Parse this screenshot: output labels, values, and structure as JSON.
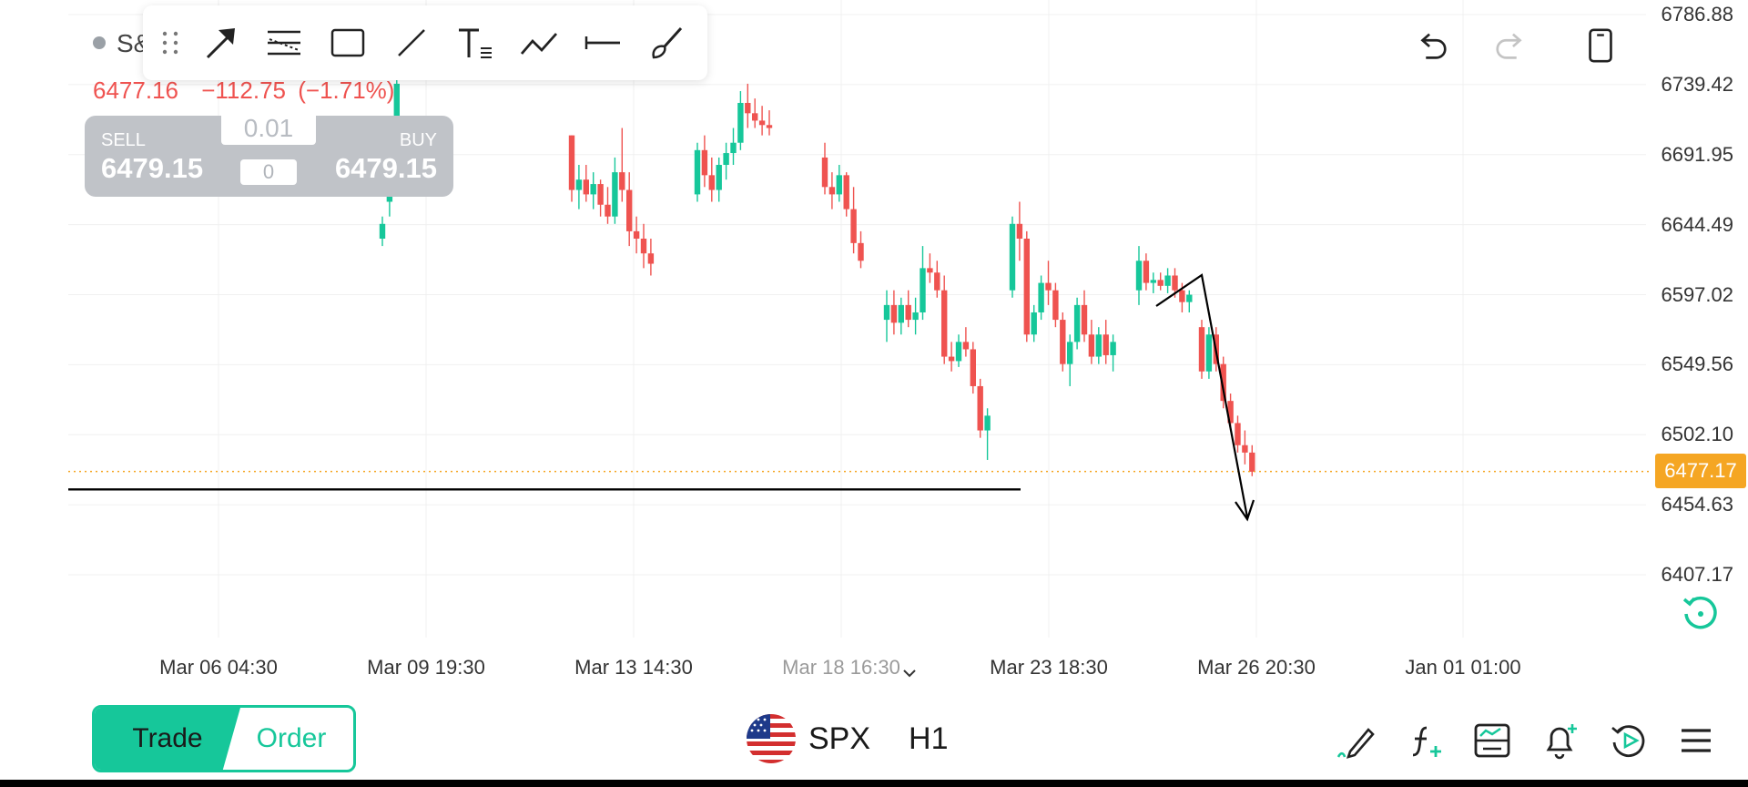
{
  "symbol": {
    "name_fragment": "S&",
    "last": "6477.16",
    "change": "−112.75",
    "change_pct": "(−1.71%)"
  },
  "trade_panel": {
    "sell_label": "SELL",
    "sell_price": "6479.15",
    "buy_label": "BUY",
    "buy_price": "6479.15",
    "lot_size": "0.01",
    "quantity": "0"
  },
  "toolbar": {
    "tools": [
      "drag-handle",
      "arrow-tool",
      "fib-retracement-tool",
      "rectangle-tool",
      "trend-line-tool",
      "text-tool",
      "path-tool",
      "horizontal-ray-tool",
      "brush-tool"
    ],
    "undo_label": "undo",
    "redo_label": "redo"
  },
  "price_axis": {
    "labels": [
      "6786.88",
      "6739.42",
      "6691.95",
      "6644.49",
      "6597.02",
      "6549.56",
      "6502.10",
      "6454.63",
      "6407.17"
    ],
    "current_price": "6477.17"
  },
  "time_axis": {
    "labels": [
      "Mar 06 04:30",
      "Mar 09 19:30",
      "Mar 13 14:30",
      "Mar 18 16:30",
      "Mar 23 18:30",
      "Mar 26 20:30",
      "Jan 01 01:00"
    ]
  },
  "bottom_bar": {
    "trade_label": "Trade",
    "order_label": "Order",
    "symbol": "SPX",
    "timeframe": "H1"
  },
  "colors": {
    "up": "#16c79a",
    "down": "#ef5350",
    "price_line": "#f5a623",
    "accent": "#16c79a"
  },
  "chart_data": {
    "type": "candlestick",
    "title": "",
    "ylim": [
      6407.17,
      6786.88
    ],
    "series": [
      {
        "type": "ohlc",
        "values": [
          [
            6635,
            6650,
            6630,
            6645
          ],
          [
            6660,
            6700,
            6650,
            6690
          ],
          [
            6700,
            6745,
            6690,
            6740
          ],
          [
            6705,
            6705,
            6660,
            6668
          ],
          [
            6668,
            6685,
            6655,
            6675
          ],
          [
            6675,
            6685,
            6660,
            6665
          ],
          [
            6665,
            6680,
            6655,
            6672
          ],
          [
            6672,
            6675,
            6650,
            6658
          ],
          [
            6658,
            6670,
            6645,
            6650
          ],
          [
            6650,
            6690,
            6645,
            6680
          ],
          [
            6680,
            6710,
            6660,
            6668
          ],
          [
            6668,
            6680,
            6630,
            6640
          ],
          [
            6640,
            6650,
            6625,
            6635
          ],
          [
            6635,
            6645,
            6615,
            6625
          ],
          [
            6625,
            6635,
            6610,
            6618
          ],
          [
            6665,
            6700,
            6660,
            6695
          ],
          [
            6695,
            6705,
            6670,
            6678
          ],
          [
            6678,
            6690,
            6660,
            6668
          ],
          [
            6668,
            6690,
            6660,
            6685
          ],
          [
            6685,
            6700,
            6675,
            6693
          ],
          [
            6693,
            6710,
            6685,
            6700
          ],
          [
            6700,
            6735,
            6695,
            6727
          ],
          [
            6727,
            6740,
            6710,
            6720
          ],
          [
            6720,
            6730,
            6710,
            6715
          ],
          [
            6715,
            6725,
            6705,
            6712
          ],
          [
            6712,
            6722,
            6705,
            6710
          ],
          [
            6690,
            6700,
            6665,
            6670
          ],
          [
            6670,
            6680,
            6655,
            6665
          ],
          [
            6665,
            6685,
            6660,
            6678
          ],
          [
            6678,
            6680,
            6650,
            6655
          ],
          [
            6655,
            6670,
            6625,
            6632
          ],
          [
            6632,
            6640,
            6615,
            6620
          ],
          [
            6580,
            6600,
            6565,
            6590
          ],
          [
            6590,
            6600,
            6570,
            6578
          ],
          [
            6578,
            6595,
            6570,
            6590
          ],
          [
            6590,
            6600,
            6575,
            6580
          ],
          [
            6580,
            6595,
            6570,
            6585
          ],
          [
            6585,
            6630,
            6580,
            6615
          ],
          [
            6615,
            6625,
            6605,
            6612
          ],
          [
            6612,
            6620,
            6595,
            6600
          ],
          [
            6600,
            6610,
            6550,
            6555
          ],
          [
            6555,
            6565,
            6545,
            6552
          ],
          [
            6552,
            6570,
            6548,
            6565
          ],
          [
            6565,
            6575,
            6555,
            6560
          ],
          [
            6560,
            6565,
            6530,
            6535
          ],
          [
            6535,
            6540,
            6500,
            6505
          ],
          [
            6505,
            6520,
            6485,
            6515
          ],
          [
            6600,
            6650,
            6595,
            6645
          ],
          [
            6645,
            6660,
            6620,
            6635
          ],
          [
            6635,
            6640,
            6565,
            6570
          ],
          [
            6570,
            6590,
            6565,
            6585
          ],
          [
            6585,
            6610,
            6580,
            6605
          ],
          [
            6605,
            6620,
            6590,
            6600
          ],
          [
            6600,
            6605,
            6575,
            6580
          ],
          [
            6580,
            6585,
            6545,
            6550
          ],
          [
            6550,
            6570,
            6535,
            6565
          ],
          [
            6565,
            6595,
            6560,
            6590
          ],
          [
            6590,
            6600,
            6565,
            6570
          ],
          [
            6570,
            6580,
            6550,
            6555
          ],
          [
            6555,
            6575,
            6550,
            6570
          ],
          [
            6570,
            6580,
            6550,
            6556
          ],
          [
            6556,
            6570,
            6545,
            6565
          ],
          [
            6600,
            6630,
            6590,
            6620
          ],
          [
            6620,
            6625,
            6600,
            6605
          ],
          [
            6605,
            6612,
            6598,
            6607
          ],
          [
            6607,
            6612,
            6600,
            6603
          ],
          [
            6603,
            6615,
            6598,
            6610
          ],
          [
            6610,
            6615,
            6595,
            6600
          ],
          [
            6600,
            6605,
            6585,
            6592
          ],
          [
            6592,
            6600,
            6585,
            6597
          ],
          [
            6575,
            6580,
            6540,
            6545
          ],
          [
            6545,
            6575,
            6540,
            6570
          ],
          [
            6570,
            6575,
            6545,
            6550
          ],
          [
            6550,
            6555,
            6520,
            6525
          ],
          [
            6525,
            6530,
            6505,
            6510
          ],
          [
            6510,
            6515,
            6490,
            6495
          ],
          [
            6495,
            6505,
            6482,
            6490
          ],
          [
            6490,
            6495,
            6474,
            6477
          ]
        ]
      }
    ],
    "current_price": 6477.17,
    "support_level": 6465
  }
}
